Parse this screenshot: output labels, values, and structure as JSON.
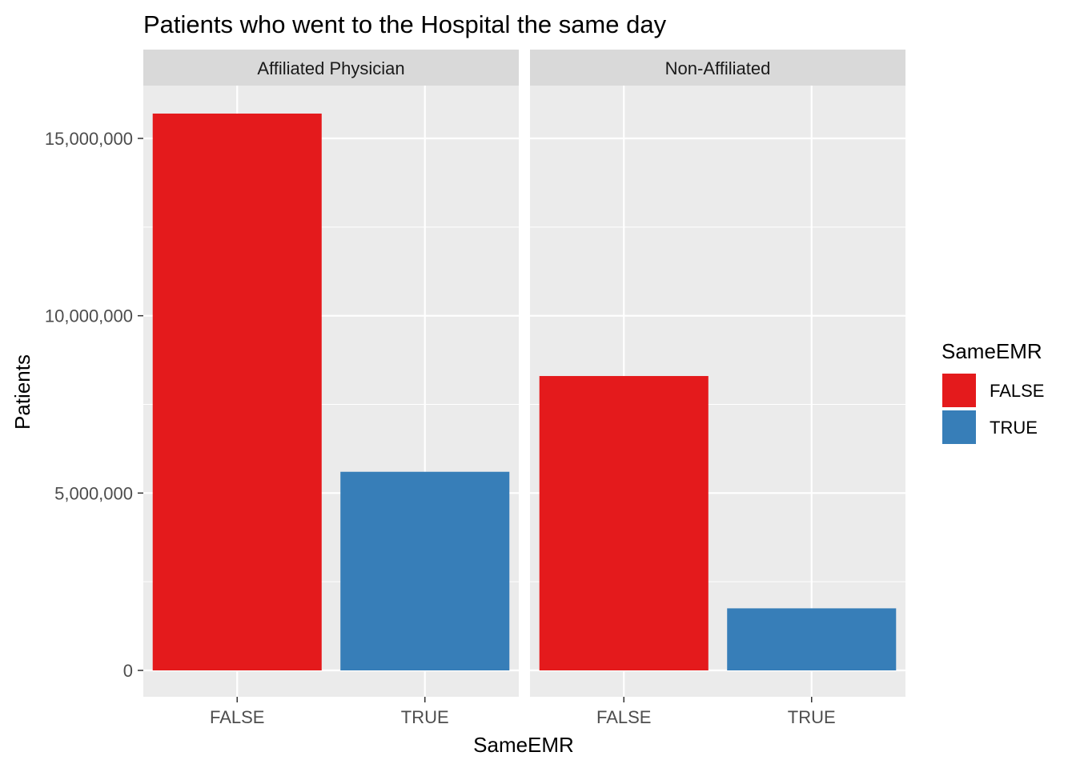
{
  "chart_data": {
    "type": "bar",
    "title": "Patients who went to the Hospital the same day",
    "xlabel": "SameEMR",
    "ylabel": "Patients",
    "ylim": [
      0,
      17000000
    ],
    "y_ticks": [
      0,
      5000000,
      10000000,
      15000000
    ],
    "y_tick_labels": [
      "0",
      "5,000,000",
      "10,000,000",
      "15,000,000"
    ],
    "grid": true,
    "legend": {
      "title": "SameEMR",
      "position": "right",
      "entries": [
        {
          "label": "FALSE",
          "color": "#e41a1c"
        },
        {
          "label": "TRUE",
          "color": "#377eb8"
        }
      ]
    },
    "panels": [
      {
        "facet": "Affiliated Physician",
        "categories": [
          "FALSE",
          "TRUE"
        ],
        "values": [
          15700000,
          5600000
        ]
      },
      {
        "facet": "Non-Affiliated",
        "categories": [
          "FALSE",
          "TRUE"
        ],
        "values": [
          8300000,
          1750000
        ]
      }
    ]
  },
  "colors": {
    "panel_bg": "#ebebeb",
    "strip_bg": "#d9d9d9",
    "grid": "#ffffff",
    "false": "#e41a1c",
    "true": "#377eb8"
  }
}
